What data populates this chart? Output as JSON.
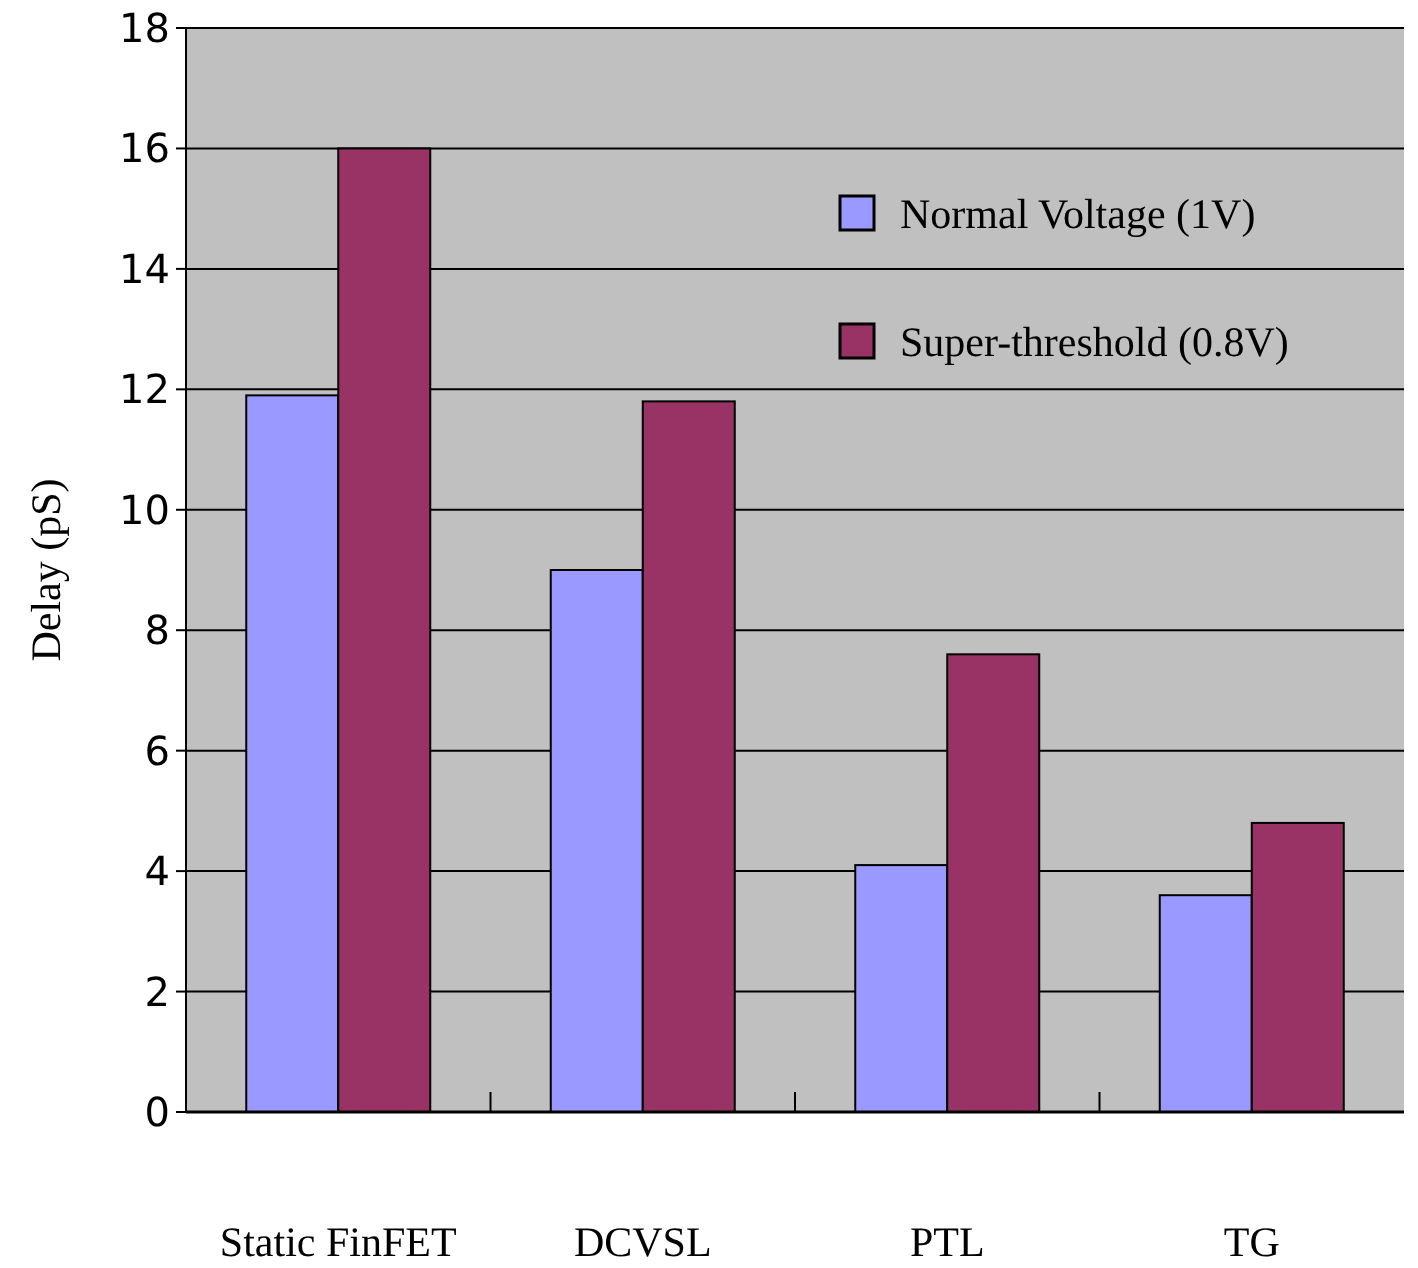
{
  "chart_data": {
    "type": "bar",
    "ylabel": "Delay  (pS)",
    "categories": [
      "Static FinFET",
      "DCVSL",
      "PTL",
      "TG"
    ],
    "series": [
      {
        "name": "Normal Voltage (1V)",
        "color": "#9999ff",
        "values": [
          11.9,
          9.0,
          4.1,
          3.6
        ]
      },
      {
        "name": "Super-threshold (0.8V)",
        "color": "#993366",
        "values": [
          16.0,
          11.8,
          7.6,
          4.8
        ]
      }
    ],
    "ylim": [
      0,
      18
    ],
    "yticks": [
      0,
      2,
      4,
      6,
      8,
      10,
      12,
      14,
      16,
      18
    ],
    "grid": "y",
    "legend": "top right"
  }
}
